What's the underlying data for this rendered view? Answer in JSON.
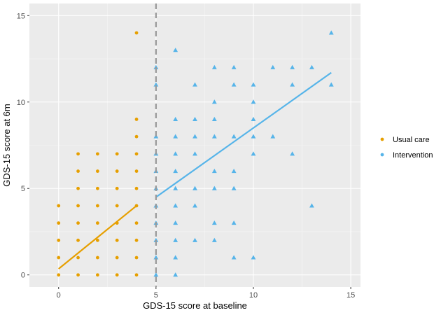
{
  "chart_data": {
    "type": "scatter",
    "xlabel": "GDS-15 score at baseline",
    "ylabel": "GDS-15 score at 6m",
    "xlim": [
      -1.5,
      15.5
    ],
    "ylim": [
      -0.7,
      15.7
    ],
    "x_ticks": [
      "0",
      "5",
      "10",
      "15"
    ],
    "y_ticks": [
      "0",
      "5",
      "10",
      "15"
    ],
    "x_tick_values": [
      0,
      5,
      10,
      15
    ],
    "y_tick_values": [
      0,
      5,
      10,
      15
    ],
    "cutoff_line_x": 5,
    "series": [
      {
        "name": "Usual care",
        "color": "#E69F00",
        "marker": "circle",
        "points": [
          [
            0,
            0
          ],
          [
            0,
            1
          ],
          [
            0,
            2
          ],
          [
            0,
            3
          ],
          [
            0,
            4
          ],
          [
            1,
            0
          ],
          [
            1,
            1
          ],
          [
            1,
            2
          ],
          [
            1,
            3
          ],
          [
            1,
            4
          ],
          [
            1,
            5
          ],
          [
            1,
            6
          ],
          [
            1,
            7
          ],
          [
            2,
            0
          ],
          [
            2,
            1
          ],
          [
            2,
            2
          ],
          [
            2,
            3
          ],
          [
            2,
            4
          ],
          [
            2,
            5
          ],
          [
            2,
            6
          ],
          [
            2,
            7
          ],
          [
            3,
            0
          ],
          [
            3,
            1
          ],
          [
            3,
            2
          ],
          [
            3,
            3
          ],
          [
            3,
            4
          ],
          [
            3,
            5
          ],
          [
            3,
            6
          ],
          [
            3,
            7
          ],
          [
            4,
            0
          ],
          [
            4,
            1
          ],
          [
            4,
            2
          ],
          [
            4,
            3
          ],
          [
            4,
            4
          ],
          [
            4,
            5
          ],
          [
            4,
            6
          ],
          [
            4,
            7
          ],
          [
            4,
            8
          ],
          [
            4,
            9
          ],
          [
            4,
            14
          ]
        ],
        "fit": {
          "x": [
            0,
            4
          ],
          "y": [
            0.35,
            4.0
          ]
        }
      },
      {
        "name": "Intervention",
        "color": "#56B4E9",
        "marker": "triangle",
        "points": [
          [
            5,
            0
          ],
          [
            5,
            1
          ],
          [
            5,
            2
          ],
          [
            5,
            3
          ],
          [
            5,
            4
          ],
          [
            5,
            5
          ],
          [
            5,
            6
          ],
          [
            5,
            7
          ],
          [
            5,
            8
          ],
          [
            5,
            11
          ],
          [
            5,
            12
          ],
          [
            6,
            0
          ],
          [
            6,
            1
          ],
          [
            6,
            2
          ],
          [
            6,
            3
          ],
          [
            6,
            4
          ],
          [
            6,
            5
          ],
          [
            6,
            6
          ],
          [
            6,
            7
          ],
          [
            6,
            8
          ],
          [
            6,
            9
          ],
          [
            6,
            13
          ],
          [
            7,
            2
          ],
          [
            7,
            4
          ],
          [
            7,
            5
          ],
          [
            7,
            7
          ],
          [
            7,
            8
          ],
          [
            7,
            9
          ],
          [
            7,
            11
          ],
          [
            8,
            2
          ],
          [
            8,
            3
          ],
          [
            8,
            5
          ],
          [
            8,
            6
          ],
          [
            8,
            8
          ],
          [
            8,
            9
          ],
          [
            8,
            10
          ],
          [
            8,
            12
          ],
          [
            9,
            1
          ],
          [
            9,
            3
          ],
          [
            9,
            5
          ],
          [
            9,
            6
          ],
          [
            9,
            8
          ],
          [
            9,
            11
          ],
          [
            9,
            12
          ],
          [
            10,
            1
          ],
          [
            10,
            7
          ],
          [
            10,
            8
          ],
          [
            10,
            9
          ],
          [
            10,
            10
          ],
          [
            10,
            11
          ],
          [
            11,
            8
          ],
          [
            11,
            12
          ],
          [
            12,
            7
          ],
          [
            12,
            11
          ],
          [
            12,
            12
          ],
          [
            13,
            4
          ],
          [
            13,
            12
          ],
          [
            14,
            11
          ],
          [
            14,
            14
          ]
        ],
        "fit": {
          "x": [
            5,
            14
          ],
          "y": [
            4.5,
            11.7
          ]
        }
      }
    ],
    "legend": {
      "position": "right",
      "entries": [
        "Usual care",
        "Intervention"
      ]
    }
  }
}
